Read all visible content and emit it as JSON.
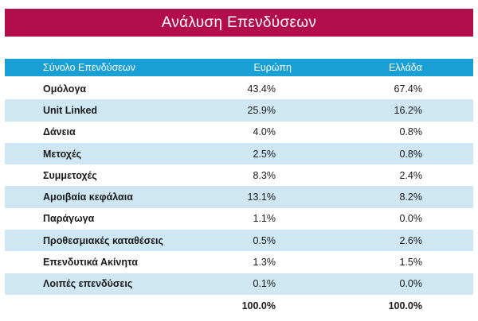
{
  "title": "Ανάλυση Επενδύσεων",
  "table": {
    "headers": {
      "label": "Σύνολο Επενδύσεων",
      "europe": "Ευρώπη",
      "greece": "Ελλάδα"
    },
    "rows": [
      {
        "label": "Ομόλογα",
        "europe": "43.4%",
        "greece": "67.4%"
      },
      {
        "label": "Unit Linked",
        "europe": "25.9%",
        "greece": "16.2%"
      },
      {
        "label": "Δάνεια",
        "europe": "4.0%",
        "greece": "0.8%"
      },
      {
        "label": "Μετοχές",
        "europe": "2.5%",
        "greece": "0.8%"
      },
      {
        "label": "Συμμετοχές",
        "europe": "8.3%",
        "greece": "2.4%"
      },
      {
        "label": "Αμοιβαία κεφάλαια",
        "europe": "13.1%",
        "greece": "8.2%"
      },
      {
        "label": "Παράγωγα",
        "europe": "1.1%",
        "greece": "0.0%"
      },
      {
        "label": "Προθεσμιακές καταθέσεις",
        "europe": "0.5%",
        "greece": "2.6%"
      },
      {
        "label": "Επενδυτικά Ακίνητα",
        "europe": "1.3%",
        "greece": "1.5%"
      },
      {
        "label": "Λοιπές επενδύσεις",
        "europe": "0.1%",
        "greece": "0.0%"
      }
    ],
    "total": {
      "europe": "100.0%",
      "greece": "100.0%"
    }
  },
  "colors": {
    "banner": "#b10e4b",
    "header": "#1ba0d5",
    "stripe": "#cfe6f3"
  }
}
